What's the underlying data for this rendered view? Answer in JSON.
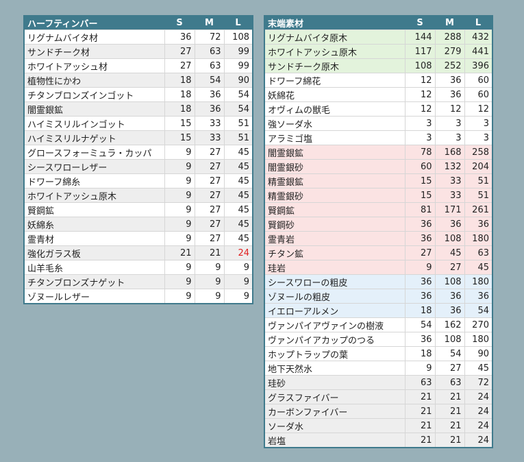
{
  "left_table": {
    "headers": [
      "ハーフティンバー",
      "S",
      "M",
      "L"
    ],
    "rows": [
      {
        "name": "リグナムバイタ材",
        "s": "36",
        "m": "72",
        "l": "108",
        "bg": "white"
      },
      {
        "name": "サンドチーク材",
        "s": "27",
        "m": "63",
        "l": "99",
        "bg": "gray"
      },
      {
        "name": "ホワイトアッシュ材",
        "s": "27",
        "m": "63",
        "l": "99",
        "bg": "white"
      },
      {
        "name": "植物性にかわ",
        "s": "18",
        "m": "54",
        "l": "90",
        "bg": "gray"
      },
      {
        "name": "チタンブロンズインゴット",
        "s": "18",
        "m": "36",
        "l": "54",
        "bg": "white"
      },
      {
        "name": "闇霊銀鉱",
        "s": "18",
        "m": "36",
        "l": "54",
        "bg": "gray"
      },
      {
        "name": "ハイミスリルインゴット",
        "s": "15",
        "m": "33",
        "l": "51",
        "bg": "white"
      },
      {
        "name": "ハイミスリルナゲット",
        "s": "15",
        "m": "33",
        "l": "51",
        "bg": "gray"
      },
      {
        "name": "グロースフォーミュラ・カッパ",
        "s": "9",
        "m": "27",
        "l": "45",
        "bg": "white"
      },
      {
        "name": "シースワローレザー",
        "s": "9",
        "m": "27",
        "l": "45",
        "bg": "gray"
      },
      {
        "name": "ドワーフ綿糸",
        "s": "9",
        "m": "27",
        "l": "45",
        "bg": "white"
      },
      {
        "name": "ホワイトアッシュ原木",
        "s": "9",
        "m": "27",
        "l": "45",
        "bg": "gray"
      },
      {
        "name": "賢鋼鉱",
        "s": "9",
        "m": "27",
        "l": "45",
        "bg": "white"
      },
      {
        "name": "妖綿糸",
        "s": "9",
        "m": "27",
        "l": "45",
        "bg": "gray"
      },
      {
        "name": "霊青材",
        "s": "9",
        "m": "27",
        "l": "45",
        "bg": "white"
      },
      {
        "name": "強化ガラス板",
        "s": "21",
        "m": "21",
        "l": "24",
        "bg": "gray",
        "l_red": true
      },
      {
        "name": "山羊毛糸",
        "s": "9",
        "m": "9",
        "l": "9",
        "bg": "white"
      },
      {
        "name": "チタンブロンズナゲット",
        "s": "9",
        "m": "9",
        "l": "9",
        "bg": "gray"
      },
      {
        "name": "ゾヌールレザー",
        "s": "9",
        "m": "9",
        "l": "9",
        "bg": "white"
      }
    ]
  },
  "right_table": {
    "headers": [
      "末端素材",
      "S",
      "M",
      "L"
    ],
    "rows": [
      {
        "name": "リグナムバイタ原木",
        "s": "144",
        "m": "288",
        "l": "432",
        "bg": "green"
      },
      {
        "name": "ホワイトアッシュ原木",
        "s": "117",
        "m": "279",
        "l": "441",
        "bg": "green"
      },
      {
        "name": "サンドチーク原木",
        "s": "108",
        "m": "252",
        "l": "396",
        "bg": "green"
      },
      {
        "name": "ドワーフ綿花",
        "s": "12",
        "m": "36",
        "l": "60",
        "bg": "white"
      },
      {
        "name": "妖綿花",
        "s": "12",
        "m": "36",
        "l": "60",
        "bg": "white"
      },
      {
        "name": "オヴィムの獣毛",
        "s": "12",
        "m": "12",
        "l": "12",
        "bg": "white"
      },
      {
        "name": "強ソーダ水",
        "s": "3",
        "m": "3",
        "l": "3",
        "bg": "white"
      },
      {
        "name": "アラミゴ塩",
        "s": "3",
        "m": "3",
        "l": "3",
        "bg": "white"
      },
      {
        "name": "闇霊銀鉱",
        "s": "78",
        "m": "168",
        "l": "258",
        "bg": "pink"
      },
      {
        "name": "闇霊銀砂",
        "s": "60",
        "m": "132",
        "l": "204",
        "bg": "pink"
      },
      {
        "name": "精霊銀鉱",
        "s": "15",
        "m": "33",
        "l": "51",
        "bg": "pink"
      },
      {
        "name": "精霊銀砂",
        "s": "15",
        "m": "33",
        "l": "51",
        "bg": "pink"
      },
      {
        "name": "賢鋼鉱",
        "s": "81",
        "m": "171",
        "l": "261",
        "bg": "pink"
      },
      {
        "name": "賢鋼砂",
        "s": "36",
        "m": "36",
        "l": "36",
        "bg": "pink"
      },
      {
        "name": "霊青岩",
        "s": "36",
        "m": "108",
        "l": "180",
        "bg": "pink"
      },
      {
        "name": "チタン鉱",
        "s": "27",
        "m": "45",
        "l": "63",
        "bg": "pink"
      },
      {
        "name": "珪岩",
        "s": "9",
        "m": "27",
        "l": "45",
        "bg": "pink"
      },
      {
        "name": "シースワローの粗皮",
        "s": "36",
        "m": "108",
        "l": "180",
        "bg": "blue"
      },
      {
        "name": "ゾヌールの粗皮",
        "s": "36",
        "m": "36",
        "l": "36",
        "bg": "blue"
      },
      {
        "name": "イエローアルメン",
        "s": "18",
        "m": "36",
        "l": "54",
        "bg": "blue"
      },
      {
        "name": "ヴァンパイアヴァインの樹液",
        "s": "54",
        "m": "162",
        "l": "270",
        "bg": "white"
      },
      {
        "name": "ヴァンパイアカップのつる",
        "s": "36",
        "m": "108",
        "l": "180",
        "bg": "white"
      },
      {
        "name": "ホップトラップの葉",
        "s": "18",
        "m": "54",
        "l": "90",
        "bg": "white"
      },
      {
        "name": "地下天然水",
        "s": "9",
        "m": "27",
        "l": "45",
        "bg": "white"
      },
      {
        "name": "珪砂",
        "s": "63",
        "m": "63",
        "l": "72",
        "bg": "gray"
      },
      {
        "name": "グラスファイバー",
        "s": "21",
        "m": "21",
        "l": "24",
        "bg": "gray"
      },
      {
        "name": "カーボンファイバー",
        "s": "21",
        "m": "21",
        "l": "24",
        "bg": "gray"
      },
      {
        "name": "ソーダ水",
        "s": "21",
        "m": "21",
        "l": "24",
        "bg": "gray"
      },
      {
        "name": "岩塩",
        "s": "21",
        "m": "21",
        "l": "24",
        "bg": "gray"
      }
    ]
  }
}
